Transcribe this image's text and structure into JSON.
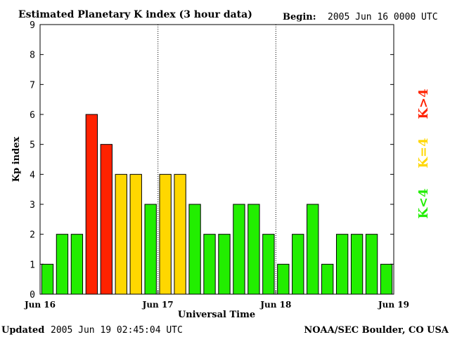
{
  "header": {
    "title": "Estimated Planetary K index (3 hour data)",
    "begin_label": "Begin:",
    "begin_value": "2005 Jun 16 0000 UTC"
  },
  "footer": {
    "updated_label": "Updated",
    "updated_value": "2005 Jun 19 02:45:04 UTC",
    "credit": "NOAA/SEC Boulder, CO USA"
  },
  "legend": {
    "high": {
      "label": "K>4",
      "color": "#ff2200"
    },
    "equal": {
      "label": "K=4",
      "color": "#ffd700"
    },
    "low": {
      "label": "K<4",
      "color": "#22ee00"
    }
  },
  "chart_data": {
    "type": "bar",
    "title": "Estimated Planetary K index (3 hour data)",
    "xlabel": "Universal Time",
    "ylabel": "Kp index",
    "ylim": [
      0,
      9
    ],
    "yticks": [
      "0",
      "1",
      "2",
      "3",
      "4",
      "5",
      "6",
      "7",
      "8",
      "9"
    ],
    "xticks": [
      "Jun 16",
      "Jun 17",
      "Jun 18",
      "Jun 19"
    ],
    "interval_hours": 3,
    "values": [
      1,
      2,
      2,
      6,
      5,
      4,
      4,
      3,
      4,
      4,
      3,
      2,
      2,
      3,
      3,
      2,
      1,
      2,
      3,
      1,
      2,
      2,
      2,
      1
    ],
    "day_separators": [
      "Jun 17",
      "Jun 18"
    ],
    "colors": {
      "gt4": "#ff2200",
      "eq4": "#ffd700",
      "lt4": "#22ee00"
    }
  }
}
